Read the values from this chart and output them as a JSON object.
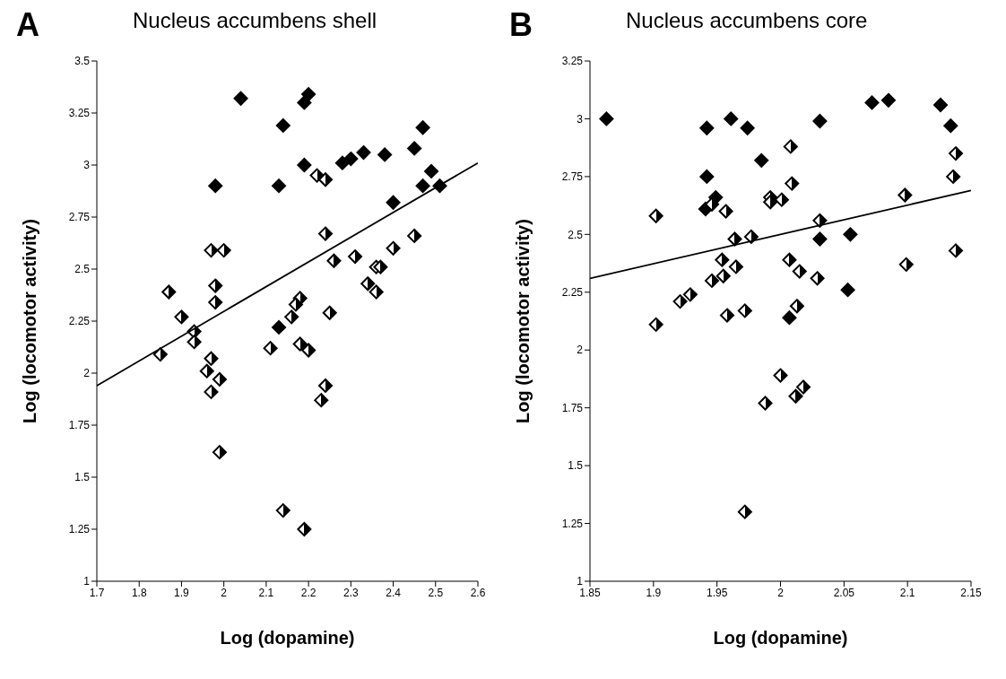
{
  "chart_data": [
    {
      "type": "scatter",
      "title": "Nucleus accumbens shell",
      "annotations": [
        "A"
      ],
      "xlabel": "Log (dopamine)",
      "ylabel": "Log (locomotor activity)",
      "xlim": [
        1.7,
        2.6
      ],
      "xticks": [
        1.7,
        1.8,
        1.9,
        2,
        2.1,
        2.2,
        2.3,
        2.4,
        2.5,
        2.6
      ],
      "ylim": [
        1,
        3.5
      ],
      "yticks": [
        1,
        1.25,
        1.5,
        1.75,
        2,
        2.25,
        2.5,
        2.75,
        3,
        3.25,
        3.5
      ],
      "grid": false,
      "legend": false,
      "marker": "diamond",
      "series": [
        {
          "color": "#000000",
          "x": [
            2.04,
            2.2,
            2.19,
            2.14,
            2.47,
            2.45,
            2.33,
            2.38,
            2.3,
            2.28,
            2.19,
            2.49,
            1.98,
            2.13,
            2.47,
            2.51,
            2.4,
            2.13
          ],
          "values": [
            3.32,
            3.34,
            3.3,
            3.19,
            3.18,
            3.08,
            3.06,
            3.05,
            3.03,
            3.01,
            3.0,
            2.97,
            2.9,
            2.9,
            2.9,
            2.9,
            2.82,
            2.22
          ]
        },
        {
          "color": "#000000",
          "x": [
            2.22,
            2.24,
            2.24,
            1.97,
            2.0,
            2.45,
            2.4,
            2.31,
            2.26,
            2.36,
            2.37,
            2.34,
            2.36,
            1.98,
            1.98,
            1.87,
            1.9,
            1.93,
            1.93,
            2.18,
            2.17,
            2.16,
            2.25,
            2.11,
            2.18,
            2.2,
            1.85,
            1.97,
            1.96,
            1.99,
            1.97,
            2.24,
            2.23,
            1.99,
            2.14,
            2.19
          ],
          "values": [
            2.95,
            2.93,
            2.67,
            2.59,
            2.59,
            2.66,
            2.6,
            2.56,
            2.54,
            2.51,
            2.51,
            2.43,
            2.39,
            2.42,
            2.34,
            2.39,
            2.27,
            2.2,
            2.15,
            2.36,
            2.33,
            2.27,
            2.29,
            2.12,
            2.14,
            2.11,
            2.09,
            2.07,
            2.01,
            1.97,
            1.91,
            1.94,
            1.87,
            1.62,
            1.34,
            1.25
          ]
        },
        {
          "type": "line",
          "color": "#000000",
          "marker": "none",
          "line_style": "solid",
          "x": [
            1.7,
            2.6
          ],
          "values": [
            1.94,
            3.01
          ]
        }
      ]
    },
    {
      "type": "scatter",
      "title": "Nucleus accumbens core",
      "annotations": [
        "B"
      ],
      "xlabel": "Log (dopamine)",
      "ylabel": "Log (locomotor activity)",
      "xlim": [
        1.85,
        2.15
      ],
      "xticks": [
        1.85,
        1.9,
        1.95,
        2,
        2.05,
        2.1,
        2.15
      ],
      "ylim": [
        1,
        3.25
      ],
      "yticks": [
        1,
        1.25,
        1.5,
        1.75,
        2,
        2.25,
        2.5,
        2.75,
        3,
        3.25
      ],
      "grid": false,
      "legend": false,
      "marker": "diamond",
      "series": [
        {
          "color": "#000000",
          "x": [
            1.863,
            1.942,
            1.961,
            1.974,
            2.031,
            2.072,
            2.085,
            2.126,
            2.134,
            1.985,
            1.942,
            1.949,
            1.941,
            2.031,
            2.055,
            2.053,
            2.007
          ],
          "values": [
            3.0,
            2.96,
            3.0,
            2.96,
            2.99,
            3.07,
            3.08,
            3.06,
            2.97,
            2.82,
            2.75,
            2.66,
            2.61,
            2.48,
            2.5,
            2.26,
            2.14
          ]
        },
        {
          "color": "#000000",
          "x": [
            2.008,
            2.138,
            2.136,
            2.009,
            1.992,
            1.992,
            2.001,
            2.098,
            1.946,
            1.957,
            1.902,
            2.031,
            1.964,
            1.977,
            1.954,
            2.007,
            2.138,
            2.099,
            1.965,
            2.015,
            1.955,
            1.946,
            2.029,
            1.929,
            1.921,
            2.013,
            1.972,
            1.958,
            1.902,
            2.0,
            2.018,
            2.012,
            1.988,
            1.972
          ],
          "values": [
            2.88,
            2.85,
            2.75,
            2.72,
            2.66,
            2.64,
            2.65,
            2.67,
            2.63,
            2.6,
            2.58,
            2.56,
            2.48,
            2.49,
            2.39,
            2.39,
            2.43,
            2.37,
            2.36,
            2.34,
            2.32,
            2.3,
            2.31,
            2.24,
            2.21,
            2.19,
            2.17,
            2.15,
            2.11,
            1.89,
            1.84,
            1.8,
            1.77,
            1.3
          ]
        },
        {
          "type": "line",
          "color": "#000000",
          "marker": "none",
          "line_style": "solid",
          "x": [
            1.85,
            2.15
          ],
          "values": [
            2.31,
            2.69
          ]
        }
      ]
    }
  ]
}
